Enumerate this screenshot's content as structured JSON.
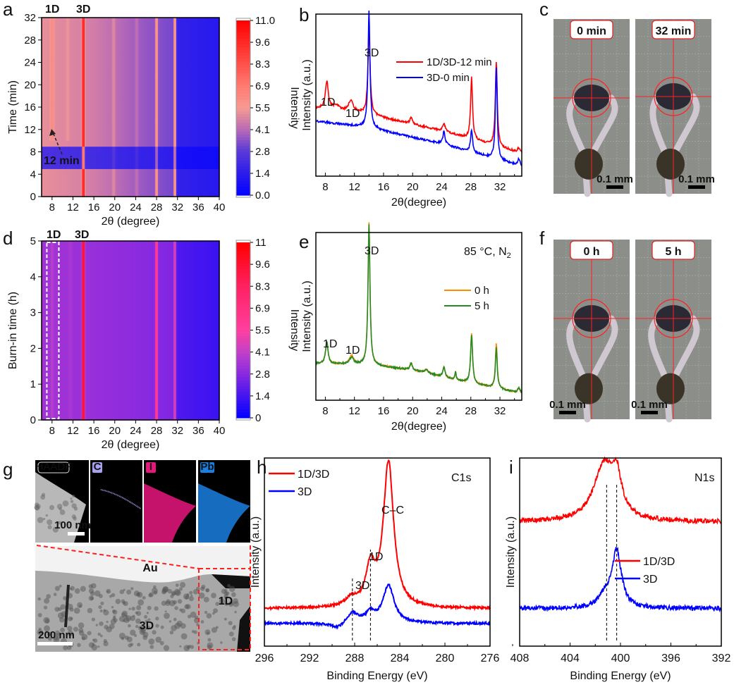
{
  "panels": {
    "a": "a",
    "b": "b",
    "c": "c",
    "d": "d",
    "e": "e",
    "f": "f",
    "g": "g",
    "h": "h",
    "i": "i"
  },
  "photos_c": {
    "left_label": "0 min",
    "right_label": "32 min",
    "scale": "0.1 mm"
  },
  "photos_f": {
    "left_label": "0 h",
    "right_label": "5 h",
    "scale": "0.1 mm"
  },
  "tem": {
    "haadf": "HAADF",
    "c": "C",
    "i": "I",
    "pb": "Pb",
    "scale_top": "100 nm",
    "scale_bottom": "200 nm",
    "au": "Au",
    "one_d": "1D",
    "three_d": "3D",
    "colors": {
      "c": "#a8a0f0",
      "i": "#e8157e",
      "pb": "#1a7fe0"
    }
  },
  "chart_data": [
    {
      "type": "heatmap",
      "panel": "a",
      "xlabel": "2θ (degree)",
      "ylabel": "Time (min)",
      "xlim": [
        6,
        40
      ],
      "ylim": [
        0,
        32
      ],
      "xticks": [
        "8",
        "12",
        "16",
        "20",
        "24",
        "28",
        "32",
        "36",
        "40"
      ],
      "yticks": [
        "0",
        "4",
        "8",
        "12",
        "16",
        "20",
        "24",
        "28",
        "32"
      ],
      "colorbar": {
        "label": "Intensity",
        "range": [
          0,
          11
        ],
        "ticks": [
          "0.0",
          "1.4",
          "2.8",
          "4.1",
          "5.5",
          "6.9",
          "8.3",
          "9.6",
          "11.0"
        ],
        "stops": [
          [
            0,
            "#0000ff"
          ],
          [
            2.8,
            "#5a3ad8"
          ],
          [
            4.1,
            "#b568b8"
          ],
          [
            5.5,
            "#f79a92"
          ],
          [
            6.9,
            "#ff7a70"
          ],
          [
            11,
            "#ff0000"
          ]
        ]
      },
      "background": [
        [
          6,
          5.2
        ],
        [
          16,
          4.7
        ],
        [
          24,
          3.8
        ],
        [
          31,
          3.2
        ],
        [
          32,
          1.6
        ],
        [
          40,
          1.2
        ]
      ],
      "low_band": {
        "t": [
          4.5,
          9.5
        ],
        "scale": 0.45
      },
      "peaks": [
        {
          "x": 8,
          "amp": 1.2,
          "t_from": 10
        },
        {
          "x": 11,
          "amp": 0.4,
          "t_from": 10
        },
        {
          "x": 14,
          "amp": 6.5,
          "t_from": 0
        },
        {
          "x": 19.8,
          "amp": 0.8,
          "t_from": 0
        },
        {
          "x": 24.2,
          "amp": 0.6,
          "t_from": 0
        },
        {
          "x": 28,
          "amp": 3.2,
          "t_from": 0
        },
        {
          "x": 31.5,
          "amp": 4.5,
          "t_from": 0
        }
      ],
      "annotations": {
        "one_d": "1D",
        "three_d": "3D",
        "arrow": "12 min"
      }
    },
    {
      "type": "line",
      "panel": "b",
      "xlabel": "2θ(degree)",
      "ylabel": "Intensity (a.u.)",
      "xlim": [
        6.7,
        35
      ],
      "ylim": [
        0,
        1
      ],
      "xticks": [
        8,
        12,
        16,
        20,
        24,
        28,
        32
      ],
      "series": [
        {
          "name": "1D/3D-12 min",
          "color": "#ff0000",
          "baseline": [
            [
              6.7,
              0.42
            ],
            [
              14,
              0.38
            ],
            [
              24,
              0.28
            ],
            [
              35,
              0.14
            ]
          ],
          "peaks": [
            [
              8.2,
              0.17,
              0.25
            ],
            [
              9.5,
              0.03,
              0.5
            ],
            [
              11.5,
              0.07,
              0.4
            ],
            [
              14,
              0.52,
              0.18
            ],
            [
              19.8,
              0.04,
              0.2
            ],
            [
              24.3,
              0.05,
              0.2
            ],
            [
              28.1,
              0.38,
              0.16
            ],
            [
              31.5,
              0.52,
              0.16
            ],
            [
              34.6,
              0.03,
              0.2
            ]
          ]
        },
        {
          "name": "3D-0 min",
          "color": "#0000ff",
          "baseline": [
            [
              6.7,
              0.34
            ],
            [
              14,
              0.3
            ],
            [
              24,
              0.2
            ],
            [
              35,
              0.06
            ]
          ],
          "peaks": [
            [
              14,
              0.72,
              0.16
            ],
            [
              24.3,
              0.08,
              0.18
            ],
            [
              28.1,
              0.14,
              0.16
            ],
            [
              31.5,
              0.57,
              0.15
            ],
            [
              34.6,
              0.04,
              0.2
            ]
          ]
        }
      ],
      "annotations": [
        "3D",
        "1D",
        "1D"
      ]
    },
    {
      "type": "heatmap",
      "panel": "d",
      "xlabel": "2θ (degree)",
      "ylabel": "Burn-in time (h)",
      "xlim": [
        6,
        40
      ],
      "ylim": [
        0,
        5
      ],
      "xticks": [
        "8",
        "12",
        "16",
        "20",
        "24",
        "28",
        "32",
        "36",
        "40"
      ],
      "yticks": [
        "0",
        "1",
        "2",
        "3",
        "4",
        "5"
      ],
      "colorbar": {
        "label": "Intensity",
        "range": [
          0,
          11
        ],
        "ticks": [
          "0",
          "1.4",
          "2.8",
          "4.1",
          "5.5",
          "6.9",
          "8.3",
          "9.6",
          "11"
        ],
        "stops": [
          [
            0,
            "#0000ff"
          ],
          [
            2.8,
            "#8a2ae0"
          ],
          [
            4.1,
            "#c040c8"
          ],
          [
            5.5,
            "#ff3fa0"
          ],
          [
            8.3,
            "#ff2060"
          ],
          [
            11,
            "#ff0000"
          ]
        ]
      },
      "background": [
        [
          6,
          3.4
        ],
        [
          20,
          3.0
        ],
        [
          31,
          2.6
        ],
        [
          32,
          1.6
        ],
        [
          40,
          1.2
        ]
      ],
      "peaks": [
        {
          "x": 8,
          "amp": 0.6,
          "t_from": 0
        },
        {
          "x": 11.5,
          "amp": 0.4,
          "t_from": 0
        },
        {
          "x": 14,
          "amp": 8.5,
          "t_from": 0
        },
        {
          "x": 28,
          "amp": 4.5,
          "t_from": 0
        },
        {
          "x": 31.5,
          "amp": 3.2,
          "t_from": 0
        }
      ],
      "highlight_box": {
        "x": [
          7,
          9.3
        ],
        "y": [
          0,
          5
        ]
      },
      "annotations": {
        "one_d": "1D",
        "three_d": "3D"
      }
    },
    {
      "type": "line",
      "panel": "e",
      "xlabel": "2θ(degree)",
      "ylabel": "Intensity (a.u.)",
      "xlim": [
        6.7,
        35
      ],
      "ylim": [
        0,
        1
      ],
      "xticks": [
        8,
        12,
        16,
        20,
        24,
        28,
        32
      ],
      "condition": "85 °C, N",
      "condition_sub": "2",
      "series": [
        {
          "name": "0 h",
          "color": "#ff8c00",
          "baseline": [
            [
              6.7,
              0.22
            ],
            [
              14,
              0.21
            ],
            [
              20,
              0.18
            ],
            [
              26,
              0.12
            ],
            [
              35,
              0.04
            ]
          ],
          "peaks": [
            [
              8.2,
              0.13,
              0.2
            ],
            [
              11.6,
              0.05,
              0.35
            ],
            [
              14,
              0.85,
              0.16
            ],
            [
              19.8,
              0.04,
              0.18
            ],
            [
              21.9,
              0.02,
              0.3
            ],
            [
              24.3,
              0.06,
              0.18
            ],
            [
              25.9,
              0.05,
              0.1
            ],
            [
              28.1,
              0.3,
              0.16
            ],
            [
              31.5,
              0.27,
              0.15
            ],
            [
              34.6,
              0.03,
              0.2
            ]
          ]
        },
        {
          "name": "5 h",
          "color": "#228b22",
          "baseline": [
            [
              6.7,
              0.22
            ],
            [
              14,
              0.21
            ],
            [
              20,
              0.18
            ],
            [
              26,
              0.12
            ],
            [
              35,
              0.04
            ]
          ],
          "peaks": [
            [
              8.2,
              0.13,
              0.2
            ],
            [
              11.6,
              0.04,
              0.35
            ],
            [
              14,
              0.84,
              0.16
            ],
            [
              19.8,
              0.04,
              0.18
            ],
            [
              21.9,
              0.02,
              0.3
            ],
            [
              24.3,
              0.06,
              0.18
            ],
            [
              25.9,
              0.05,
              0.1
            ],
            [
              28.1,
              0.29,
              0.16
            ],
            [
              31.5,
              0.24,
              0.15
            ],
            [
              34.6,
              0.03,
              0.2
            ]
          ]
        }
      ],
      "annotations": [
        "3D",
        "1D",
        "1D"
      ]
    },
    {
      "type": "line",
      "panel": "h",
      "xlabel": "Binding Energy (eV)",
      "ylabel": "Intensity (a.u.)",
      "xlim": [
        296,
        276
      ],
      "ylim": [
        0,
        1
      ],
      "xticks": [
        296,
        292,
        288,
        284,
        280,
        276
      ],
      "title": "C1s",
      "series": [
        {
          "name": "1D/3D",
          "color": "#ff0000",
          "baseline": [
            [
              296,
              0.2
            ],
            [
              276,
              0.2
            ]
          ],
          "peaks": [
            [
              285,
              0.77,
              0.55
            ],
            [
              286.6,
              0.2,
              0.5
            ],
            [
              288.3,
              0.04,
              0.6
            ]
          ]
        },
        {
          "name": "3D",
          "color": "#0000ff",
          "baseline": [
            [
              296,
              0.12
            ],
            [
              276,
              0.12
            ]
          ],
          "peaks": [
            [
              285,
              0.2,
              0.6
            ],
            [
              286.6,
              0.05,
              0.5
            ],
            [
              288.2,
              0.06,
              0.6
            ],
            [
              289.5,
              -0.03,
              0.8
            ]
          ]
        }
      ],
      "dashed_lines": [
        288.2,
        286.6
      ],
      "annotations": [
        "C–C",
        "1D",
        "3D"
      ]
    },
    {
      "type": "line",
      "panel": "i",
      "xlabel": "Binding Energy (eV)",
      "ylabel": "Intensity (a.u.)",
      "xlim": [
        408,
        392
      ],
      "ylim": [
        0,
        1
      ],
      "xticks": [
        408,
        404,
        400,
        396,
        392
      ],
      "title": "N1s",
      "series": [
        {
          "name": "1D/3D",
          "color": "#ff0000",
          "baseline": [
            [
              408,
              0.66
            ],
            [
              392,
              0.66
            ]
          ],
          "peaks": [
            [
              401.3,
              0.3,
              1.0
            ],
            [
              400.3,
              0.18,
              0.45
            ]
          ]
        },
        {
          "name": "3D",
          "color": "#0000ff",
          "baseline": [
            [
              408,
              0.2
            ],
            [
              392,
              0.2
            ]
          ],
          "peaks": [
            [
              400.3,
              0.3,
              0.45
            ],
            [
              401.2,
              0.06,
              0.6
            ]
          ]
        }
      ],
      "dashed_lines": [
        401.1,
        400.3
      ]
    }
  ]
}
